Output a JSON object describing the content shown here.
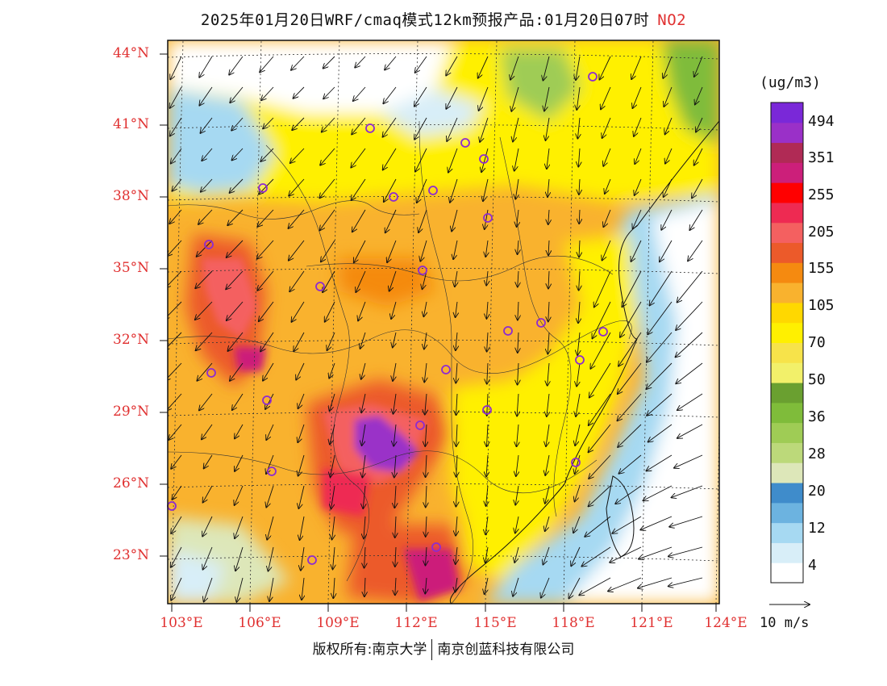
{
  "title": {
    "text": "2025年01月20日WRF/cmaq模式12km预报产品:01月20日07时",
    "pollutant": "NO2"
  },
  "colorbar": {
    "unit": "(ug/m3)",
    "colors": [
      "#ffffff",
      "#d8eef8",
      "#a6d9f2",
      "#6cb3e0",
      "#3f8ccb",
      "#dde7b9",
      "#bcd97a",
      "#9fcc55",
      "#7fbc3a",
      "#6aa030",
      "#f2f06a",
      "#f7e34a",
      "#fff000",
      "#ffd800",
      "#f9b22e",
      "#f58a10",
      "#ec5a2a",
      "#f46060",
      "#ee2a52",
      "#ff0000",
      "#cc1f7a",
      "#b02a55",
      "#9a30c8",
      "#7a28d8"
    ],
    "labels": [
      "4",
      "12",
      "20",
      "28",
      "36",
      "50",
      "70",
      "105",
      "155",
      "205",
      "255",
      "351",
      "494"
    ]
  },
  "axes": {
    "lat_labels": [
      "44°N",
      "41°N",
      "38°N",
      "35°N",
      "32°N",
      "29°N",
      "26°N",
      "23°N"
    ],
    "lon_labels": [
      "103°E",
      "106°E",
      "109°E",
      "112°E",
      "115°E",
      "118°E",
      "121°E",
      "124°E"
    ]
  },
  "wind_legend": "10 m/s",
  "footer": {
    "left": "版权所有:南京大学",
    "right": "南京创蓝科技有限公司"
  },
  "palette": {
    "label_red": "#e03030",
    "marker": "#8e2bd0"
  }
}
